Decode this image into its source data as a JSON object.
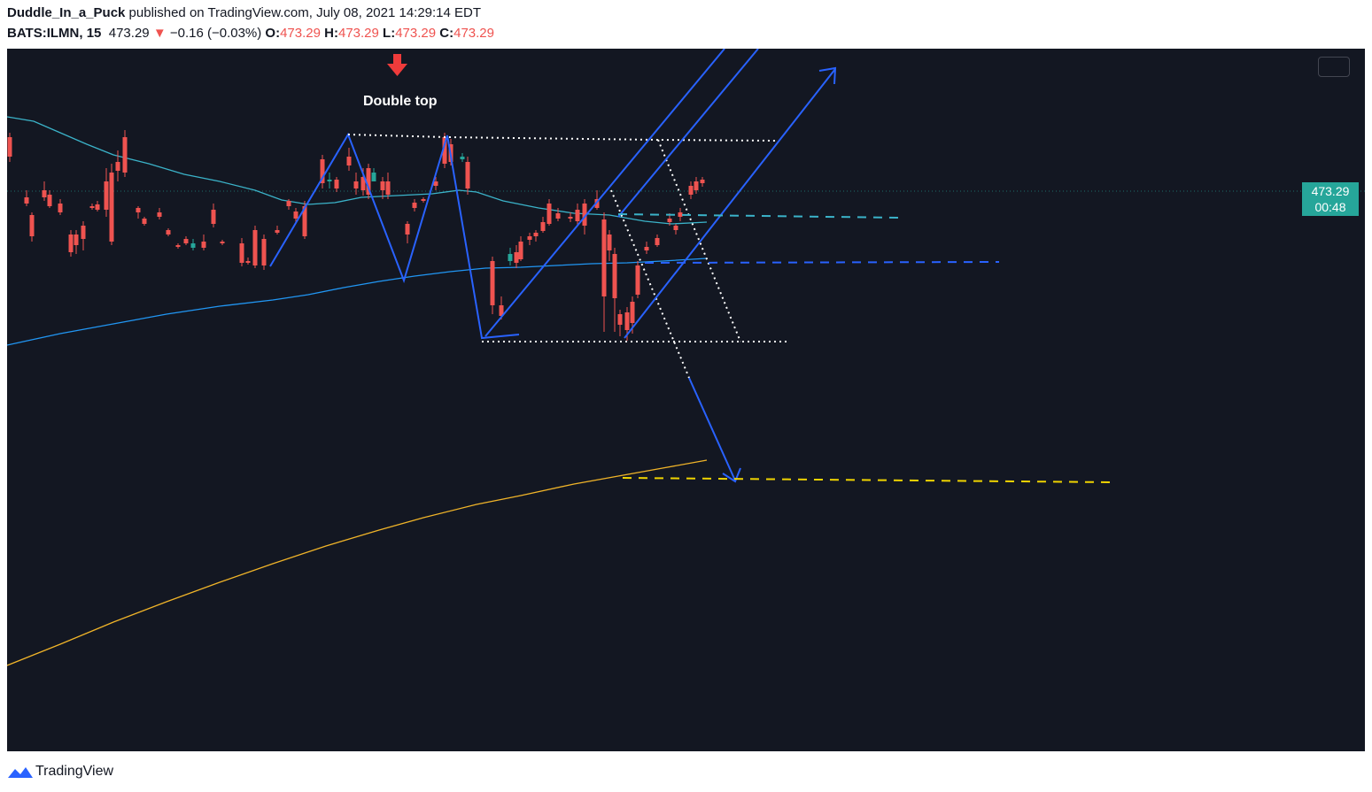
{
  "header": {
    "author": "Duddle_In_a_Puck",
    "published_text": " published on TradingView.com, July 08, 2021 14:29:14 EDT",
    "symbol": "BATS:ILMN, 15",
    "last": "473.29",
    "change_arrow": "▼",
    "change": "−0.16 (−0.03%)",
    "open_label": "O:",
    "open": "473.29",
    "high_label": "H:",
    "high": "473.29",
    "low_label": "L:",
    "low": "473.29",
    "close_label": "C:",
    "close": "473.29"
  },
  "annotation": {
    "text": "Double top",
    "arrow_icon": "arrow-down-icon"
  },
  "price_tag": {
    "price": "473.29",
    "countdown": "00:48"
  },
  "footer": {
    "brand": "TradingView",
    "logo_icon": "tradingview-logo-icon"
  },
  "colors": {
    "background": "#131722",
    "up": "#26a69a",
    "down": "#ef5350",
    "pattern": "#2962ff",
    "ma_fast": "#3bb3c9",
    "ma_mid": "#2196f3",
    "ma_slow": "#f0b429",
    "dotted": "#ffffff"
  },
  "chart_data": {
    "type": "candlestick",
    "symbol": "BATS:ILMN",
    "interval": "15",
    "last_price": 473.29,
    "annotations": [
      "Double top"
    ]
  }
}
